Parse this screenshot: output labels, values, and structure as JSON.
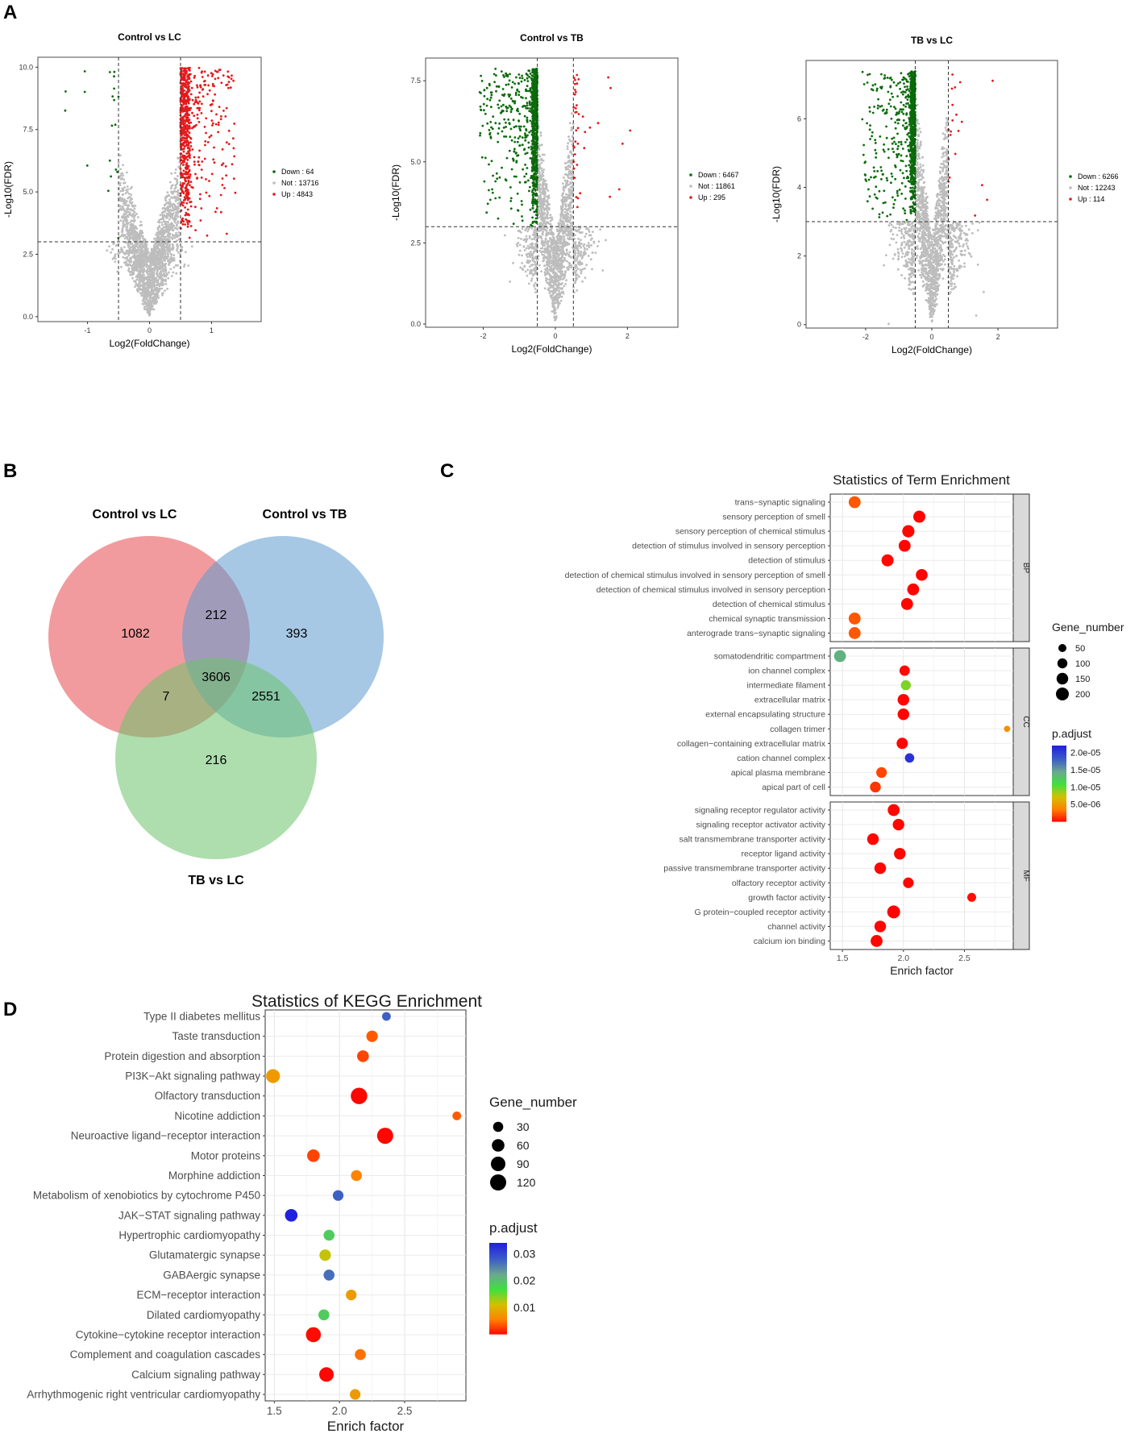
{
  "panel_labels": {
    "a": "A",
    "b": "B",
    "c": "C",
    "d": "D"
  },
  "chart_data": [
    {
      "id": "volcano1",
      "type": "scatter",
      "title": "Control vs LC",
      "xlabel": "Log2(FoldChange)",
      "ylabel": "-Log10(FDR)",
      "xlim": [
        -1.8,
        1.8
      ],
      "ylim": [
        -0.2,
        10.4
      ],
      "xticks": [
        -1,
        0,
        1
      ],
      "yticks": [
        0.0,
        2.5,
        5.0,
        7.5,
        10.0
      ],
      "ytick_labels": [
        "0.0",
        "2.5",
        "5.0",
        "7.5",
        "10.0"
      ],
      "fc_threshold": 0.5,
      "fdr_threshold": 3.0,
      "legend": [
        {
          "label": "Down : 64",
          "color": "#0a6b0a"
        },
        {
          "label": "Not : 13716",
          "color": "#bdbdbd"
        },
        {
          "label": "Up : 4843",
          "color": "#e41a1c"
        }
      ],
      "counts": {
        "down": 64,
        "not": 13716,
        "up": 4843
      }
    },
    {
      "id": "volcano2",
      "type": "scatter",
      "title": "Control vs TB",
      "xlabel": "Log2(FoldChange)",
      "ylabel": "-Log10(FDR)",
      "xlim": [
        -3.6,
        3.4
      ],
      "ylim": [
        -0.1,
        8.2
      ],
      "xticks": [
        -2,
        0,
        2
      ],
      "yticks": [
        0.0,
        2.5,
        5.0,
        7.5
      ],
      "ytick_labels": [
        "0.0",
        "2.5",
        "5.0",
        "7.5"
      ],
      "fc_threshold": 0.5,
      "fdr_threshold": 3.0,
      "legend": [
        {
          "label": "Down : 6467",
          "color": "#0a6b0a"
        },
        {
          "label": "Not : 11861",
          "color": "#bdbdbd"
        },
        {
          "label": "Up : 295",
          "color": "#e41a1c"
        }
      ],
      "counts": {
        "down": 6467,
        "not": 11861,
        "up": 295
      }
    },
    {
      "id": "volcano3",
      "type": "scatter",
      "title": "TB vs LC",
      "xlabel": "Log2(FoldChange)",
      "ylabel": "-Log10(FDR)",
      "xlim": [
        -3.8,
        3.8
      ],
      "ylim": [
        -0.1,
        7.7
      ],
      "xticks": [
        -2,
        0,
        2
      ],
      "yticks": [
        0,
        2,
        4,
        6
      ],
      "ytick_labels": [
        "0",
        "2",
        "4",
        "6"
      ],
      "fc_threshold": 0.5,
      "fdr_threshold": 3.0,
      "legend": [
        {
          "label": "Down : 6266",
          "color": "#0a6b0a"
        },
        {
          "label": "Not : 12243",
          "color": "#bdbdbd"
        },
        {
          "label": "Up : 114",
          "color": "#e41a1c"
        }
      ],
      "counts": {
        "down": 6266,
        "not": 12243,
        "up": 114
      }
    },
    {
      "id": "venn",
      "type": "venn",
      "sets": [
        {
          "name": "Control vs LC",
          "color": "#e8484f"
        },
        {
          "name": "Control vs TB",
          "color": "#5c9bcf"
        },
        {
          "name": "TB vs LC",
          "color": "#6cc26c"
        }
      ],
      "regions": {
        "lc_only": 1082,
        "lc_tb_only": 212,
        "tb_only": 393,
        "lc_tbvslc_only": 7,
        "all_three": 3606,
        "tb_tbvslc_only": 2551,
        "tbvslc_only": 216
      }
    },
    {
      "id": "go",
      "type": "dot",
      "title": "Statistics of Term Enrichment",
      "xlabel": "Enrich factor",
      "xlim": [
        1.4,
        2.9
      ],
      "xticks": [
        1.5,
        2.0,
        2.5
      ],
      "xtick_labels": [
        "1.5",
        "2.0",
        "2.5"
      ],
      "size_legend_title": "Gene_number",
      "size_legend": [
        50,
        100,
        150,
        200
      ],
      "color_legend_title": "p.adjust",
      "color_legend_ticks": [
        "2.0e-05",
        "1.5e-05",
        "1.0e-05",
        "5.0e-06"
      ],
      "color_range": [
        0,
        2.2e-05
      ],
      "groups": [
        {
          "name": "BP",
          "terms": [
            {
              "term": "trans−synaptic signaling",
              "x": 1.6,
              "size": 160,
              "p": 2.5e-06
            },
            {
              "term": "sensory perception of smell",
              "x": 2.13,
              "size": 170,
              "p": 1e-07
            },
            {
              "term": "sensory perception of chemical stimulus",
              "x": 2.04,
              "size": 175,
              "p": 2e-07
            },
            {
              "term": "detection of stimulus involved in sensory perception",
              "x": 2.01,
              "size": 165,
              "p": 2e-07
            },
            {
              "term": "detection of stimulus",
              "x": 1.87,
              "size": 170,
              "p": 3e-07
            },
            {
              "term": "detection of chemical stimulus involved in sensory perception of smell",
              "x": 2.15,
              "size": 155,
              "p": 1e-07
            },
            {
              "term": "detection of chemical stimulus involved in sensory perception",
              "x": 2.08,
              "size": 160,
              "p": 1e-07
            },
            {
              "term": "detection of chemical stimulus",
              "x": 2.03,
              "size": 165,
              "p": 2e-07
            },
            {
              "term": "chemical synaptic transmission",
              "x": 1.6,
              "size": 160,
              "p": 2.5e-06
            },
            {
              "term": "anterograde trans−synaptic signaling",
              "x": 1.6,
              "size": 160,
              "p": 2.5e-06
            }
          ]
        },
        {
          "name": "CC",
          "terms": [
            {
              "term": "somatodendritic compartment",
              "x": 1.48,
              "size": 165,
              "p": 1.4e-05
            },
            {
              "term": "ion channel complex",
              "x": 2.01,
              "size": 110,
              "p": 3e-07
            },
            {
              "term": "intermediate filament",
              "x": 2.02,
              "size": 100,
              "p": 9.5e-06
            },
            {
              "term": "extracellular matrix",
              "x": 2.0,
              "size": 150,
              "p": 2e-07
            },
            {
              "term": "external encapsulating structure",
              "x": 2.0,
              "size": 150,
              "p": 2e-07
            },
            {
              "term": "collagen trimer",
              "x": 2.85,
              "size": 20,
              "p": 4.5e-06
            },
            {
              "term": "collagen−containing extracellular matrix",
              "x": 1.99,
              "size": 140,
              "p": 2e-07
            },
            {
              "term": "cation channel complex",
              "x": 2.05,
              "size": 80,
              "p": 2.1e-05
            },
            {
              "term": "apical plasma membrane",
              "x": 1.82,
              "size": 120,
              "p": 2e-06
            },
            {
              "term": "apical part of cell",
              "x": 1.77,
              "size": 125,
              "p": 1.5e-06
            }
          ]
        },
        {
          "name": "MF",
          "terms": [
            {
              "term": "signaling receptor regulator activity",
              "x": 1.92,
              "size": 165,
              "p": 2e-07
            },
            {
              "term": "signaling receptor activator activity",
              "x": 1.96,
              "size": 150,
              "p": 2e-07
            },
            {
              "term": "salt transmembrane transporter activity",
              "x": 1.75,
              "size": 150,
              "p": 2e-07
            },
            {
              "term": "receptor ligand activity",
              "x": 1.97,
              "size": 150,
              "p": 2e-07
            },
            {
              "term": "passive transmembrane transporter activity",
              "x": 1.81,
              "size": 150,
              "p": 2e-07
            },
            {
              "term": "olfactory receptor activity",
              "x": 2.04,
              "size": 120,
              "p": 2e-07
            },
            {
              "term": "growth factor activity",
              "x": 2.56,
              "size": 70,
              "p": 4e-07
            },
            {
              "term": "G protein−coupled receptor activity",
              "x": 1.92,
              "size": 200,
              "p": 1e-07
            },
            {
              "term": "channel activity",
              "x": 1.81,
              "size": 150,
              "p": 2e-07
            },
            {
              "term": "calcium ion binding",
              "x": 1.78,
              "size": 160,
              "p": 2e-07
            }
          ]
        }
      ]
    },
    {
      "id": "kegg",
      "type": "dot",
      "title": "Statistics of KEGG Enrichment",
      "xlabel": "Enrich factor",
      "xlim": [
        1.43,
        2.97
      ],
      "xticks": [
        1.5,
        2.0,
        2.5
      ],
      "xtick_labels": [
        "1.5",
        "2.0",
        "2.5"
      ],
      "size_legend_title": "Gene_number",
      "size_legend": [
        30,
        60,
        90,
        120
      ],
      "color_legend_title": "p.adjust",
      "color_legend_ticks": [
        "0.03",
        "0.02",
        "0.01"
      ],
      "color_range": [
        0,
        0.034
      ],
      "terms": [
        {
          "term": "Type II diabetes mellitus",
          "x": 2.36,
          "size": 18,
          "p": 0.028
        },
        {
          "term": "Taste transduction",
          "x": 2.25,
          "size": 45,
          "p": 0.004
        },
        {
          "term": "Protein digestion and absorption",
          "x": 2.18,
          "size": 50,
          "p": 0.003
        },
        {
          "term": "PI3K−Akt signaling pathway",
          "x": 1.49,
          "size": 80,
          "p": 0.008
        },
        {
          "term": "Olfactory transduction",
          "x": 2.15,
          "size": 125,
          "p": 0.0002
        },
        {
          "term": "Nicotine addiction",
          "x": 2.9,
          "size": 18,
          "p": 0.004
        },
        {
          "term": "Neuroactive ligand−receptor interaction",
          "x": 2.35,
          "size": 120,
          "p": 0.0003
        },
        {
          "term": "Motor proteins",
          "x": 1.8,
          "size": 60,
          "p": 0.003
        },
        {
          "term": "Morphine addiction",
          "x": 2.13,
          "size": 40,
          "p": 0.006
        },
        {
          "term": "Metabolism of xenobiotics by cytochrome P450",
          "x": 1.99,
          "size": 35,
          "p": 0.028
        },
        {
          "term": "JAK−STAT signaling pathway",
          "x": 1.63,
          "size": 60,
          "p": 0.034
        },
        {
          "term": "Hypertrophic cardiomyopathy",
          "x": 1.92,
          "size": 40,
          "p": 0.019
        },
        {
          "term": "Glutamatergic synapse",
          "x": 1.89,
          "size": 45,
          "p": 0.012
        },
        {
          "term": "GABAergic synapse",
          "x": 1.92,
          "size": 40,
          "p": 0.027
        },
        {
          "term": "ECM−receptor interaction",
          "x": 2.09,
          "size": 35,
          "p": 0.008
        },
        {
          "term": "Dilated cardiomyopathy",
          "x": 1.88,
          "size": 40,
          "p": 0.019
        },
        {
          "term": "Cytokine−cytokine receptor interaction",
          "x": 1.8,
          "size": 100,
          "p": 0.0005
        },
        {
          "term": "Complement and coagulation cascades",
          "x": 2.16,
          "size": 40,
          "p": 0.005
        },
        {
          "term": "Calcium signaling pathway",
          "x": 1.9,
          "size": 90,
          "p": 0.0003
        },
        {
          "term": "Arrhythmogenic right ventricular cardiomyopathy",
          "x": 2.12,
          "size": 35,
          "p": 0.008
        }
      ]
    }
  ]
}
